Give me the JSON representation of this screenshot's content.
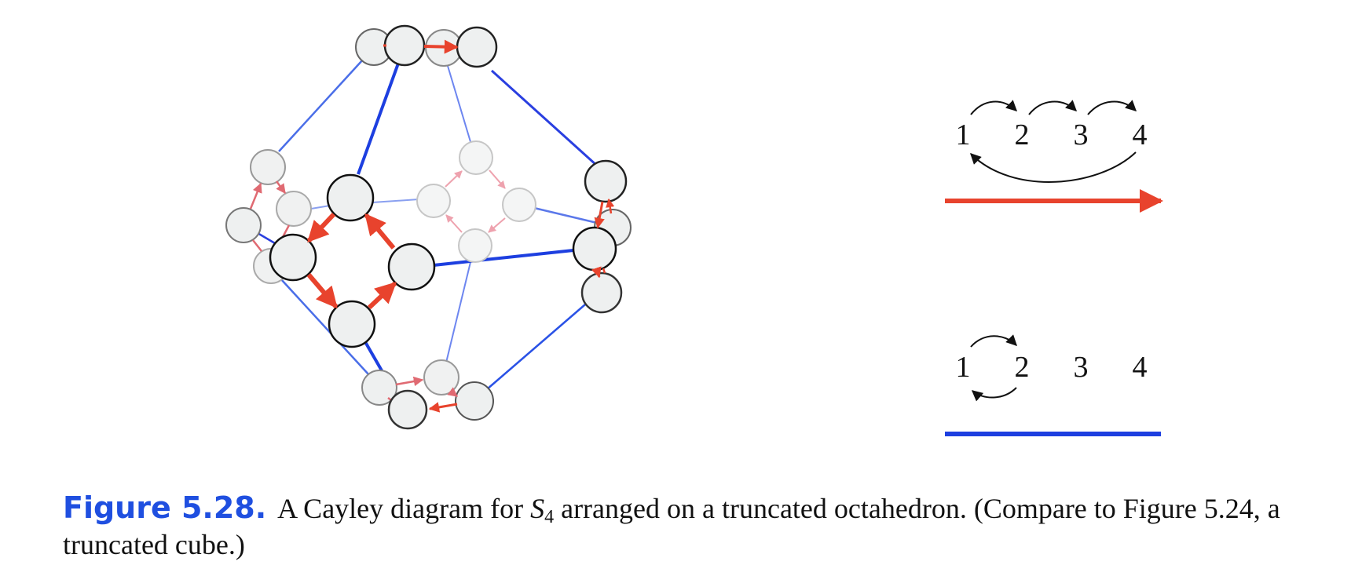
{
  "figure": {
    "label": "Figure 5.28.",
    "caption_before": "A Cayley diagram for ",
    "group_symbol": "S",
    "group_subscript": "4",
    "caption_after": " arranged on a truncated octahedron. (Compare to Figure 5.24, a truncated cube.)"
  },
  "legend": {
    "red_generator": {
      "numbers": [
        "1",
        "2",
        "3",
        "4"
      ],
      "color": "#e8432d"
    },
    "blue_generator": {
      "numbers": [
        "1",
        "2",
        "3",
        "4"
      ],
      "color": "#1d3fe0"
    }
  },
  "colors": {
    "node_fill": "#eef0f0",
    "red_arrow": "#e8432d",
    "blue_edge": "#1d3fe0"
  }
}
